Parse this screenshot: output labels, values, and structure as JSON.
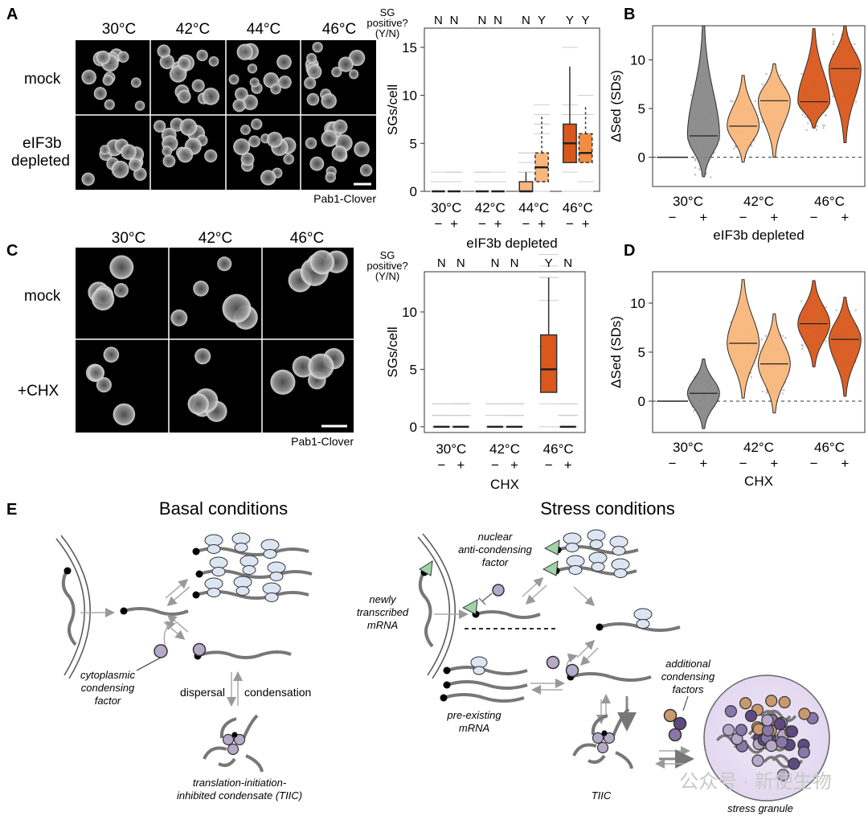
{
  "panel_letters": {
    "A": "A",
    "B": "B",
    "C": "C",
    "D": "D",
    "E": "E"
  },
  "panelA": {
    "temps": [
      "30°C",
      "42°C",
      "44°C",
      "46°C"
    ],
    "rows": [
      "mock",
      "eIF3b",
      "depleted"
    ],
    "caption": "Pab1-Clover"
  },
  "panelC": {
    "temps": [
      "30°C",
      "42°C",
      "46°C"
    ],
    "rows": [
      "mock",
      "+CHX"
    ],
    "caption": "Pab1-Clover"
  },
  "chart_data": [
    {
      "type": "box",
      "panel": "A-right",
      "title": "",
      "header_lines": [
        "SG",
        "positive?",
        "(Y/N)"
      ],
      "sg_positive": [
        "N",
        "N",
        "N",
        "N",
        "N",
        "Y",
        "Y",
        "Y"
      ],
      "categories": [
        "30°C",
        "42°C",
        "44°C",
        "46°C"
      ],
      "subgroups": [
        "−",
        "+"
      ],
      "xlabel": "eIF3b depleted",
      "ylabel": "SGs/cell",
      "ylim": [
        0,
        17
      ],
      "yticks": [
        "0",
        "5",
        "10",
        "15"
      ],
      "boxes": [
        {
          "q1": 0,
          "median": 0,
          "q3": 0,
          "whisker_hi": 0
        },
        {
          "q1": 0,
          "median": 0,
          "q3": 0,
          "whisker_hi": 0
        },
        {
          "q1": 0,
          "median": 0,
          "q3": 0,
          "whisker_hi": 0
        },
        {
          "q1": 0,
          "median": 0,
          "q3": 0,
          "whisker_hi": 0
        },
        {
          "q1": 0,
          "median": 0,
          "q3": 1,
          "whisker_hi": 2
        },
        {
          "q1": 1,
          "median": 2.5,
          "q3": 4,
          "whisker_hi": 8
        },
        {
          "q1": 3,
          "median": 5,
          "q3": 7,
          "whisker_hi": 13
        },
        {
          "q1": 3,
          "median": 4,
          "q3": 6,
          "whisker_hi": 9
        }
      ]
    },
    {
      "type": "violin",
      "panel": "B",
      "categories": [
        "30°C",
        "42°C",
        "46°C"
      ],
      "subgroups": [
        "−",
        "+"
      ],
      "xlabel": "eIF3b depleted",
      "ylabel": "ΔSed (SDs)",
      "ylim": [
        -3,
        13.5
      ],
      "yticks": [
        "0",
        "5",
        "10"
      ],
      "medians": [
        0,
        2.2,
        3.2,
        5.8,
        5.7,
        9.1
      ],
      "ranges": [
        [
          0,
          0
        ],
        [
          -2,
          13.5
        ],
        [
          -0.5,
          8.4
        ],
        [
          0,
          9.6
        ],
        [
          3,
          13.2
        ],
        [
          1.5,
          13.5
        ]
      ]
    },
    {
      "type": "box",
      "panel": "C-right",
      "header_lines": [
        "SG",
        "positive?",
        "(Y/N)"
      ],
      "sg_positive": [
        "N",
        "N",
        "N",
        "N",
        "Y",
        "N"
      ],
      "categories": [
        "30°C",
        "42°C",
        "46°C"
      ],
      "subgroups": [
        "−",
        "+"
      ],
      "xlabel": "CHX",
      "ylabel": "SGs/cell",
      "ylim": [
        -0.5,
        13.5
      ],
      "yticks": [
        "0",
        "5",
        "10"
      ],
      "boxes": [
        {
          "q1": 0,
          "median": 0,
          "q3": 0,
          "whisker_hi": 0
        },
        {
          "q1": 0,
          "median": 0,
          "q3": 0,
          "whisker_hi": 0
        },
        {
          "q1": 0,
          "median": 0,
          "q3": 0,
          "whisker_hi": 0
        },
        {
          "q1": 0,
          "median": 0,
          "q3": 0,
          "whisker_hi": 0
        },
        {
          "q1": 3,
          "median": 5,
          "q3": 8,
          "whisker_hi": 13
        },
        {
          "q1": 0,
          "median": 0,
          "q3": 0,
          "whisker_hi": 0
        }
      ]
    },
    {
      "type": "violin",
      "panel": "D",
      "categories": [
        "30°C",
        "42°C",
        "46°C"
      ],
      "subgroups": [
        "−",
        "+"
      ],
      "xlabel": "CHX",
      "ylabel": "ΔSed (SDs)",
      "ylim": [
        -3.2,
        13.2
      ],
      "yticks": [
        "0",
        "5",
        "10"
      ],
      "medians": [
        0,
        0.8,
        5.9,
        3.8,
        7.9,
        6.3
      ],
      "ranges": [
        [
          0,
          0
        ],
        [
          -2.8,
          4.3
        ],
        [
          0.3,
          12.4
        ],
        [
          -1.2,
          8.9
        ],
        [
          3.5,
          12.3
        ],
        [
          0.5,
          10.6
        ]
      ]
    }
  ],
  "panelE": {
    "basal_title": "Basal conditions",
    "stress_title": "Stress conditions",
    "cytoplasmic": [
      "cytoplasmic",
      "condensing",
      "factor"
    ],
    "dispersal": "dispersal",
    "condensation": "condensation",
    "tiic_long": [
      "translation-initiation-",
      "inhibited condensate (TIIC)"
    ],
    "nuclear": [
      "nuclear",
      "anti-condensing",
      "factor"
    ],
    "newly": [
      "newly",
      "transcribed",
      "mRNA"
    ],
    "preexisting": [
      "pre-existing",
      "mRNA"
    ],
    "additional": [
      "additional",
      "condensing",
      "factors"
    ],
    "tiic_short": "TIIC",
    "sg": "stress granule",
    "watermark": "公众号 · 新使生物"
  },
  "colors": {
    "orange_light": "#f9b77c",
    "orange_mid": "#f28c3e",
    "orange_dark": "#d9581c",
    "gray_violin": "#888888",
    "purple_factor": "#b7a9c9",
    "dark_purple": "#5e4a80",
    "tan": "#c99a6d",
    "green_tri": "#9fd3a8",
    "ribosome": "#dce6f2"
  }
}
